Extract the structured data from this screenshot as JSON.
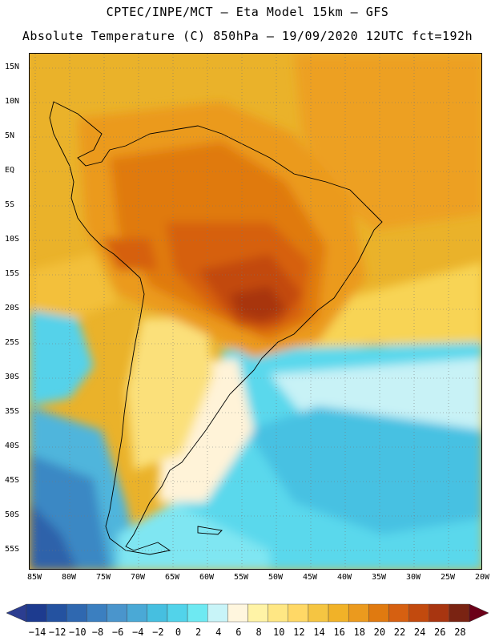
{
  "header": {
    "line1": "CPTEC/INPE/MCT –  Eta Model 15km – GFS",
    "line2": "Absolute Temperature (C) 850hPa – 19/09/2020 12UTC fct=192h"
  },
  "map": {
    "lat_labels": [
      "15N",
      "10N",
      "5N",
      "EQ",
      "5S",
      "10S",
      "15S",
      "20S",
      "25S",
      "30S",
      "35S",
      "40S",
      "45S",
      "50S",
      "55S"
    ],
    "lon_labels": [
      "85W",
      "80W",
      "75W",
      "70W",
      "65W",
      "60W",
      "55W",
      "50W",
      "45W",
      "40W",
      "35W",
      "30W",
      "25W",
      "20W"
    ],
    "lat_range": [
      15,
      -55
    ],
    "lon_range": [
      -85,
      -20
    ],
    "grid": "dotted"
  },
  "colorbar": {
    "labels": [
      "−14",
      "−12",
      "−10",
      "−8",
      "−6",
      "−4",
      "−2",
      "0",
      "2",
      "4",
      "6",
      "8",
      "10",
      "12",
      "14",
      "16",
      "18",
      "20",
      "22",
      "24",
      "26",
      "28"
    ],
    "colors": [
      "#1d3b8f",
      "#2452a0",
      "#2f68b0",
      "#3b7fc0",
      "#4a95cc",
      "#4aa9d6",
      "#46bfe0",
      "#52d3ea",
      "#6ee9f2",
      "#c8f4f8",
      "#fff6de",
      "#fff3a6",
      "#ffe784",
      "#ffd866",
      "#f5c542",
      "#f1b228",
      "#eb9a1e",
      "#e07a10",
      "#d66011",
      "#c24a0e",
      "#a83510",
      "#7a2312"
    ],
    "left_arrow": "#2b3d90",
    "right_arrow": "#6b0018"
  }
}
